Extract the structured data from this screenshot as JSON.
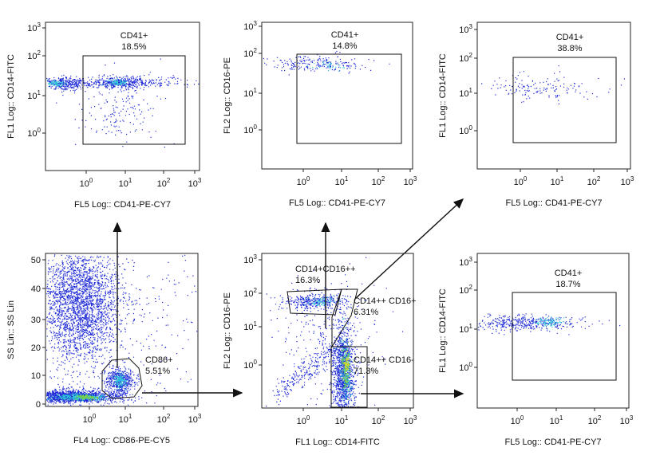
{
  "panels": [
    {
      "x_label": "FL5 Log:: CD41-PE-CY7",
      "y_label": "FL1 Log:: CD14-FITC",
      "x_tick_base": "10",
      "x_tick_exps": [
        "0",
        "1",
        "2",
        "3"
      ],
      "y_tick_base": "10",
      "y_tick_exps": [
        "0",
        "1",
        "2",
        "3"
      ],
      "gates": [
        {
          "name": "CD41+",
          "percent": "18.5%"
        }
      ]
    },
    {
      "x_label": "FL5 Log:: CD41-PE-CY7",
      "y_label": "FL2 Log:: CD16-PE",
      "x_tick_base": "10",
      "x_tick_exps": [
        "0",
        "1",
        "2",
        "3"
      ],
      "y_tick_base": "10",
      "y_tick_exps": [
        "0",
        "1",
        "2",
        "3"
      ],
      "gates": [
        {
          "name": "CD41+",
          "percent": "14.8%"
        }
      ]
    },
    {
      "x_label": "FL5 Log:: CD41-PE-CY7",
      "y_label": "FL1 Log:: CD14-FITC",
      "x_tick_base": "10",
      "x_tick_exps": [
        "0",
        "1",
        "2",
        "3"
      ],
      "y_tick_base": "10",
      "y_tick_exps": [
        "0",
        "1",
        "2",
        "3"
      ],
      "gates": [
        {
          "name": "CD41+",
          "percent": "38.8%"
        }
      ]
    },
    {
      "x_label": "FL4 Log:: CD86-PE-CY5",
      "y_label": "SS Lin:: SS Lin",
      "x_tick_base": "10",
      "x_tick_exps": [
        "0",
        "1",
        "2",
        "3"
      ],
      "y_ticks": [
        "0",
        "10",
        "20",
        "30",
        "40",
        "50"
      ],
      "gates": [
        {
          "name": "CD86+",
          "percent": "5.51%"
        }
      ]
    },
    {
      "x_label": "FL1 Log:: CD14-FITC",
      "y_label": "FL2 Log:: CD16-PE",
      "x_tick_base": "10",
      "x_tick_exps": [
        "0",
        "1",
        "2",
        "3"
      ],
      "y_tick_base": "10",
      "y_tick_exps": [
        "0",
        "1",
        "2",
        "3"
      ],
      "gates": [
        {
          "name": "CD14+CD16++",
          "percent": "16.3%"
        },
        {
          "name": "CD14++ CD16+",
          "percent": "6.31%"
        },
        {
          "name": "CD14++ CD16-",
          "percent": "71.3%"
        }
      ]
    },
    {
      "x_label": "FL5 Log:: CD41-PE-CY7",
      "y_label": "FL1 Log:: CD14-FITC",
      "x_tick_base": "10",
      "x_tick_exps": [
        "0",
        "1",
        "2",
        "3"
      ],
      "y_tick_base": "10",
      "y_tick_exps": [
        "0",
        "1",
        "2",
        "3"
      ],
      "gates": [
        {
          "name": "CD41+",
          "percent": "18.7%"
        }
      ]
    }
  ]
}
